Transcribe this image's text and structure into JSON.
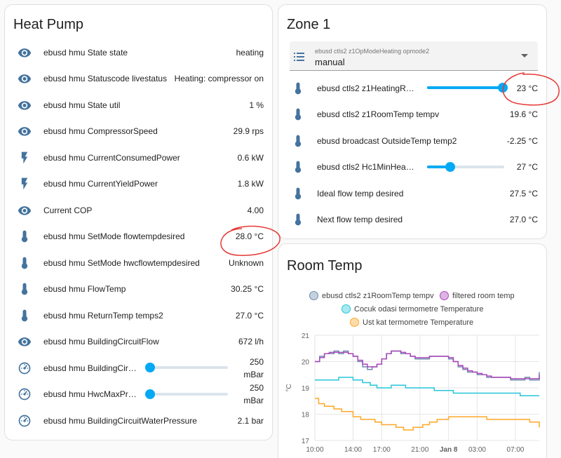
{
  "heat_pump": {
    "title": "Heat Pump",
    "rows": [
      {
        "icon": "eye-icon",
        "name": "ebusd hmu State state",
        "state": "heating"
      },
      {
        "icon": "eye-icon",
        "name": "ebusd hmu Statuscode livestatus",
        "state": "Heating: compressor on"
      },
      {
        "icon": "eye-icon",
        "name": "ebusd hmu State util",
        "state": "1 %"
      },
      {
        "icon": "eye-icon",
        "name": "ebusd hmu CompressorSpeed",
        "state": "29.9 rps"
      },
      {
        "icon": "flash-icon",
        "name": "ebusd hmu CurrentConsumedPower",
        "state": "0.6 kW"
      },
      {
        "icon": "flash-icon",
        "name": "ebusd hmu CurrentYieldPower",
        "state": "1.8 kW"
      },
      {
        "icon": "eye-icon",
        "name": "Current COP",
        "state": "4.00"
      },
      {
        "icon": "thermometer-icon",
        "name": "ebusd hmu SetMode flowtempdesired",
        "state": "28.0 °C"
      },
      {
        "icon": "thermometer-icon",
        "name": "ebusd hmu SetMode hwcflowtempdesired",
        "state": "Unknown"
      },
      {
        "icon": "thermometer-icon",
        "name": "ebusd hmu FlowTemp",
        "state": "30.25 °C"
      },
      {
        "icon": "thermometer-icon",
        "name": "ebusd hmu ReturnTemp temps2",
        "state": "27.0 °C"
      },
      {
        "icon": "eye-icon",
        "name": "ebusd hmu BuildingCircuitFlow",
        "state": "672 l/h"
      },
      {
        "icon": "gauge-icon",
        "name": "ebusd hmu BuildingCircui...",
        "state": "250\nmBar",
        "slider": 0.02
      },
      {
        "icon": "gauge-icon",
        "name": "ebusd hmu HwcMaxPres...",
        "state": "250\nmBar",
        "slider": 0.02
      },
      {
        "icon": "gauge-icon",
        "name": "ebusd hmu BuildingCircuitWaterPressure",
        "state": "2.1 bar"
      }
    ]
  },
  "zone1": {
    "title": "Zone 1",
    "select": {
      "label": "ebusd ctls2 z1OpModeHeating opmode2",
      "value": "manual"
    },
    "rows": [
      {
        "icon": "thermometer-icon",
        "name": "ebusd ctls2 z1HeatingRoo...",
        "state": "23 °C",
        "slider": 0.98
      },
      {
        "icon": "thermometer-icon",
        "name": "ebusd ctls2 z1RoomTemp tempv",
        "state": "19.6 °C"
      },
      {
        "icon": "thermometer-icon",
        "name": "ebusd broadcast OutsideTemp temp2",
        "state": "-2.25 °C"
      },
      {
        "icon": "thermometer-icon",
        "name": "ebusd ctls2 Hc1MinHeatin...",
        "state": "27 °C",
        "slider": 0.3
      },
      {
        "icon": "thermometer-icon",
        "name": "Ideal flow temp desired",
        "state": "27.5 °C"
      },
      {
        "icon": "thermometer-icon",
        "name": "Next flow temp desired",
        "state": "27.0 °C"
      }
    ]
  },
  "room_temp": {
    "title": "Room Temp"
  },
  "chart_data": {
    "type": "line",
    "ylabel": "°C",
    "ylim": [
      17,
      21
    ],
    "y_ticks": [
      "21",
      "20",
      "19",
      "18",
      "17"
    ],
    "x_ticks": [
      "10:00",
      "14:00",
      "17:00",
      "21:00",
      "Jan 8",
      "03:00",
      "07:00"
    ],
    "x_hours": [
      0,
      4,
      7,
      11,
      14,
      17,
      21
    ],
    "x_range_hours": [
      0,
      23.5
    ],
    "series": [
      {
        "name": "ebusd ctls2 z1RoomTemp tempv",
        "color": "#6d8cad",
        "x": [
          0,
          0.5,
          1,
          1.5,
          2,
          2.5,
          3,
          3.5,
          4,
          4.5,
          5,
          5.5,
          6,
          6.5,
          7,
          7.5,
          8,
          8.5,
          9,
          9.5,
          10,
          10.5,
          11,
          11.5,
          12,
          12.5,
          13,
          13.5,
          14,
          14.5,
          15,
          15.5,
          16,
          16.5,
          17,
          17.5,
          18,
          18.5,
          19,
          19.5,
          20,
          20.5,
          21,
          21.5,
          22,
          22.5,
          23,
          23.5
        ],
        "values": [
          20.0,
          20.2,
          20.3,
          20.3,
          20.4,
          20.3,
          20.4,
          20.3,
          20.2,
          20.0,
          19.8,
          19.7,
          19.8,
          19.9,
          20.1,
          20.3,
          20.4,
          20.4,
          20.3,
          20.3,
          20.2,
          20.1,
          20.1,
          20.1,
          20.2,
          20.2,
          20.2,
          20.2,
          20.1,
          20.0,
          19.8,
          19.7,
          19.6,
          19.6,
          19.5,
          19.5,
          19.4,
          19.4,
          19.4,
          19.4,
          19.4,
          19.3,
          19.3,
          19.3,
          19.4,
          19.3,
          19.3,
          19.6
        ]
      },
      {
        "name": "filtered room temp",
        "color": "#ab47bc",
        "x": [
          0,
          0.5,
          1,
          1.5,
          2,
          2.5,
          3,
          3.5,
          4,
          4.5,
          5,
          5.5,
          6,
          6.5,
          7,
          7.5,
          8,
          8.5,
          9,
          9.5,
          10,
          10.5,
          11,
          11.5,
          12,
          12.5,
          13,
          13.5,
          14,
          14.5,
          15,
          15.5,
          16,
          16.5,
          17,
          17.5,
          18,
          18.5,
          19,
          19.5,
          20,
          20.5,
          21,
          21.5,
          22,
          22.5,
          23,
          23.5
        ],
        "values": [
          20.0,
          20.15,
          20.3,
          20.35,
          20.35,
          20.35,
          20.35,
          20.3,
          20.2,
          20.05,
          19.9,
          19.8,
          19.8,
          19.9,
          20.1,
          20.3,
          20.4,
          20.4,
          20.35,
          20.3,
          20.2,
          20.15,
          20.15,
          20.15,
          20.2,
          20.2,
          20.2,
          20.2,
          20.15,
          20.0,
          19.85,
          19.75,
          19.65,
          19.6,
          19.55,
          19.5,
          19.45,
          19.4,
          19.4,
          19.4,
          19.4,
          19.35,
          19.35,
          19.35,
          19.35,
          19.35,
          19.35,
          19.5
        ]
      },
      {
        "name": "Cocuk odasi termometre Temperature",
        "color": "#26c6da",
        "x": [
          0,
          1.5,
          2.5,
          3.3,
          4.0,
          5.0,
          5.8,
          6.5,
          7.5,
          8.0,
          8.5,
          9.5,
          10.5,
          11.5,
          12.5,
          13.5,
          14.5,
          15.5,
          17.0,
          18.5,
          20.0,
          21.5,
          22.3,
          23.0,
          23.5
        ],
        "values": [
          19.3,
          19.3,
          19.4,
          19.4,
          19.3,
          19.2,
          19.1,
          19.0,
          19.0,
          19.1,
          19.1,
          19.0,
          19.0,
          19.0,
          18.9,
          18.9,
          18.8,
          18.8,
          18.8,
          18.8,
          18.8,
          18.7,
          18.7,
          18.7,
          18.7
        ]
      },
      {
        "name": "Ust kat termometre Temperature",
        "color": "#ffa726",
        "x": [
          0,
          0.4,
          1.0,
          2.0,
          2.8,
          4.0,
          4.8,
          5.5,
          6.3,
          7.0,
          7.8,
          8.5,
          9.3,
          10.3,
          11.3,
          12.0,
          12.8,
          14.0,
          16.0,
          18.0,
          20.0,
          21.5,
          22.5,
          23.2,
          23.5
        ],
        "values": [
          18.6,
          18.4,
          18.3,
          18.2,
          18.1,
          17.9,
          17.8,
          17.8,
          17.7,
          17.6,
          17.6,
          17.5,
          17.4,
          17.5,
          17.6,
          17.7,
          17.8,
          17.9,
          17.9,
          17.8,
          17.8,
          17.8,
          17.7,
          17.7,
          17.5
        ]
      }
    ]
  }
}
